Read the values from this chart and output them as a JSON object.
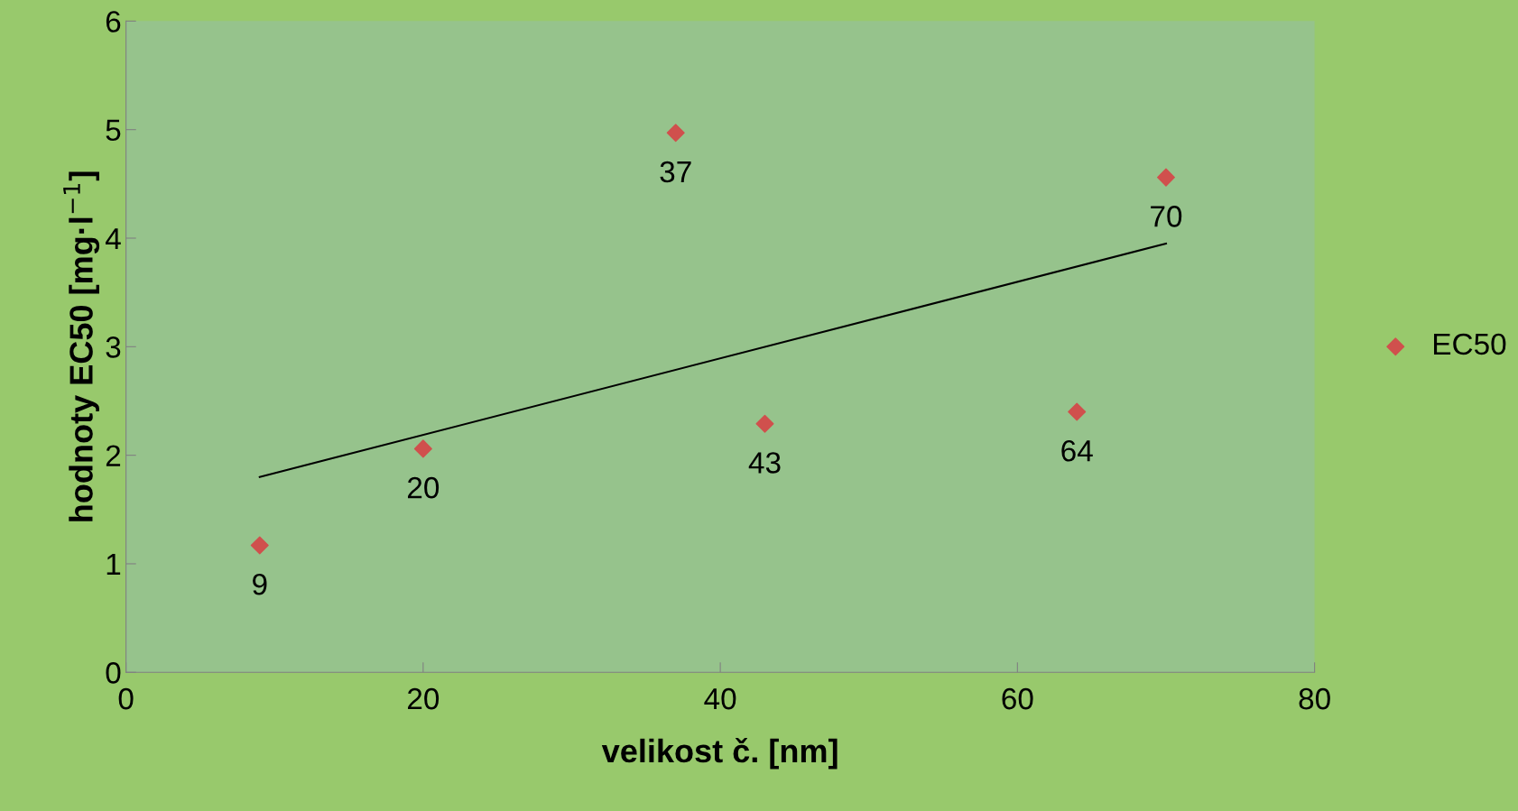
{
  "chart_data": {
    "type": "scatter",
    "xlabel": "velikost č. [nm]",
    "ylabel": "hodnoty EC50 [mg·l$^{−1}$]",
    "xlim": [
      0,
      80
    ],
    "xticks": [
      0,
      20,
      40,
      60,
      80
    ],
    "ylim": [
      0,
      6
    ],
    "yticks": [
      0,
      1,
      2,
      3,
      4,
      5,
      6
    ],
    "grid": false,
    "legend": "right",
    "series": [
      {
        "name": "EC50",
        "marker": "diamond",
        "color": "#d0504d",
        "x": [
          9,
          20,
          37,
          43,
          64,
          70
        ],
        "values": [
          1.17,
          2.06,
          4.97,
          2.29,
          2.4,
          4.56
        ]
      },
      {
        "type": "line",
        "marker": "none",
        "color": "#000000",
        "x": [
          9,
          70
        ],
        "values": [
          1.8,
          3.95
        ]
      }
    ],
    "annotations": [
      {
        "text": "9",
        "x": 9,
        "y": 1.17
      },
      {
        "text": "20",
        "x": 20,
        "y": 2.06
      },
      {
        "text": "37",
        "x": 37,
        "y": 4.97
      },
      {
        "text": "43",
        "x": 43,
        "y": 2.29
      },
      {
        "text": "64",
        "x": 64,
        "y": 2.4
      },
      {
        "text": "70",
        "x": 70,
        "y": 4.56
      }
    ]
  }
}
